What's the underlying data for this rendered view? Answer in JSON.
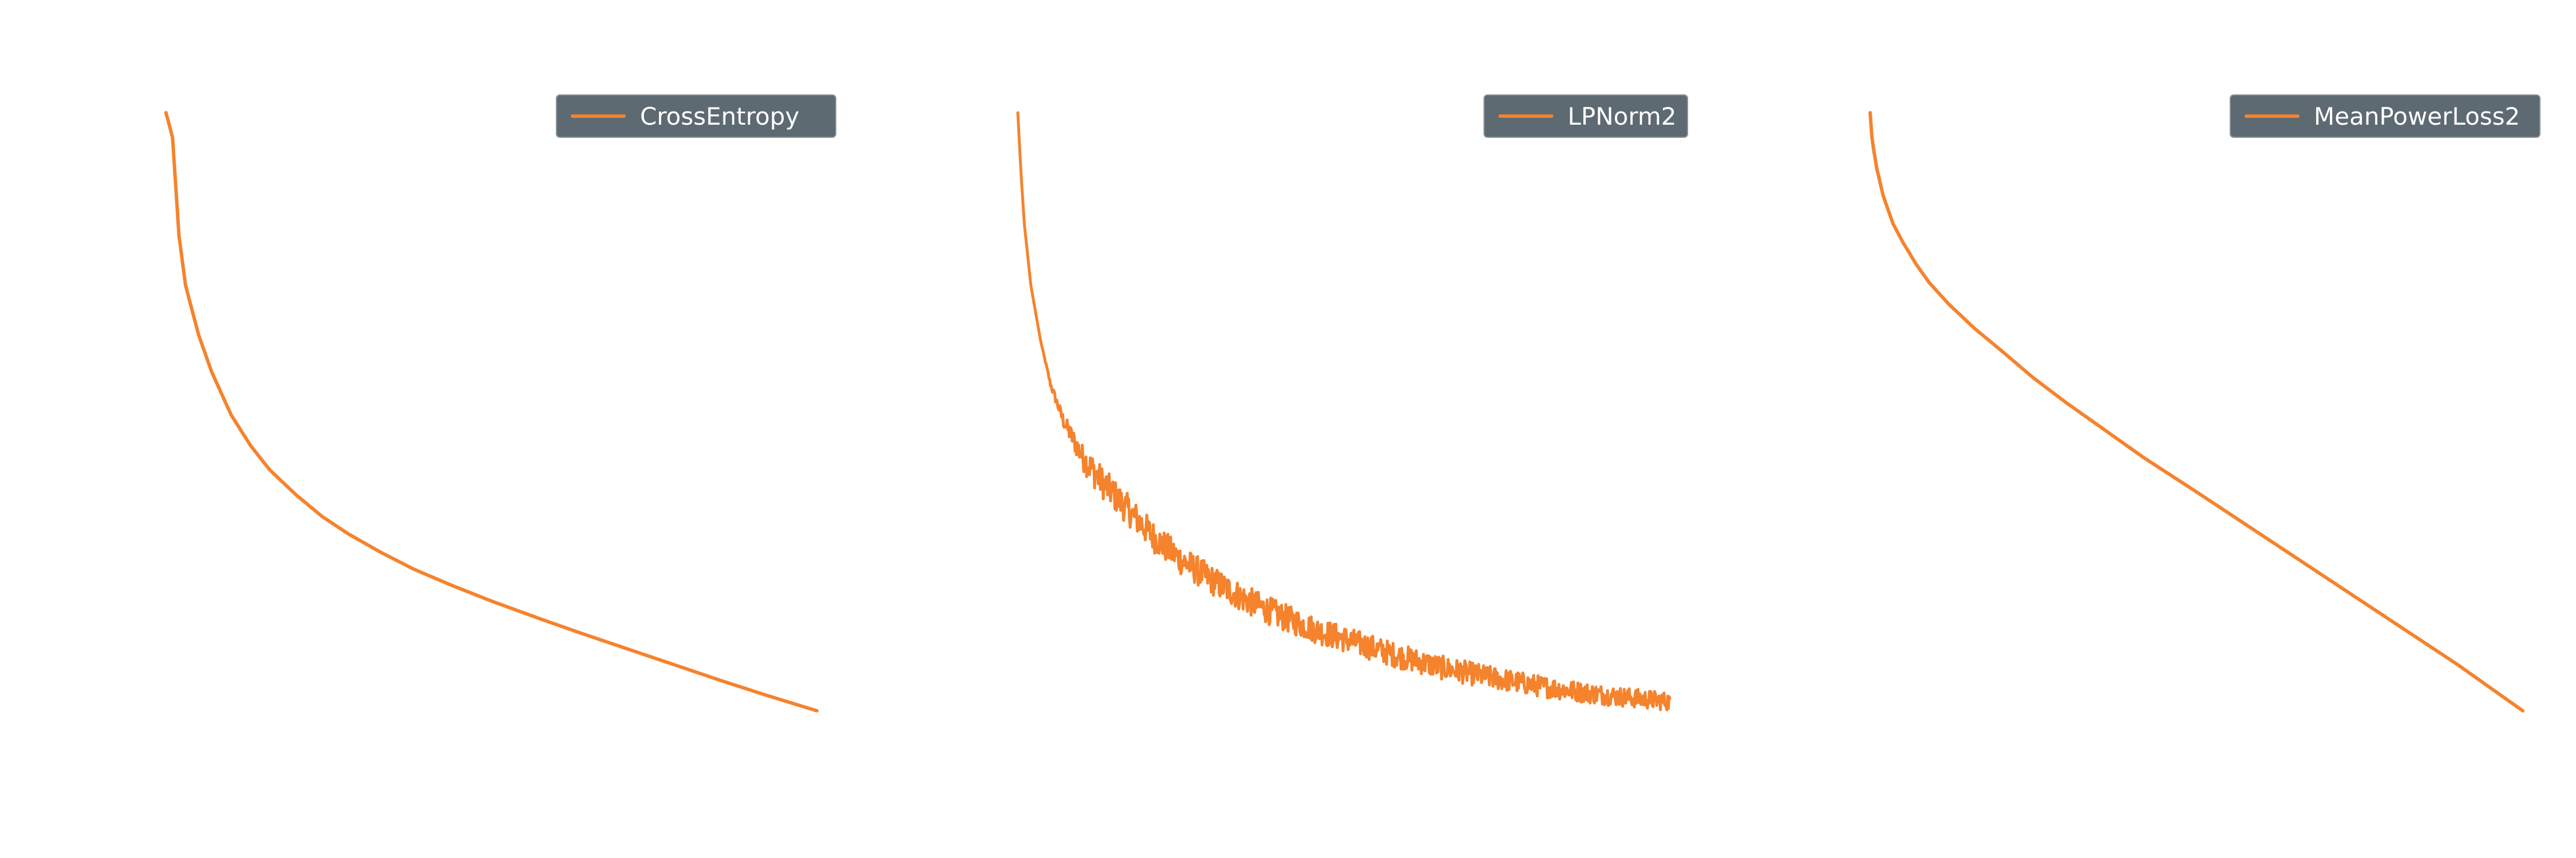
{
  "figure": {
    "background": "#ffffff"
  },
  "style": {
    "line_color": "#f5832d",
    "legend_bg": "#5d6a72",
    "legend_border": "#8a949b",
    "legend_text_color": "#ffffff"
  },
  "chart_data": [
    {
      "type": "line",
      "title": "",
      "xlabel": "",
      "ylabel": "",
      "grid": false,
      "axes_visible": false,
      "legend_placement": "top-right",
      "xlim": [
        0,
        1
      ],
      "ylim": [
        0,
        1
      ],
      "series": [
        {
          "name": "CrossEntropy",
          "x": [
            0.0,
            0.01,
            0.02,
            0.03,
            0.05,
            0.07,
            0.1,
            0.13,
            0.16,
            0.2,
            0.24,
            0.28,
            0.33,
            0.38,
            0.44,
            0.5,
            0.57,
            0.64,
            0.71,
            0.78,
            0.85,
            0.92,
            1.0
          ],
          "y": [
            1.0,
            0.96,
            0.8,
            0.72,
            0.64,
            0.58,
            0.51,
            0.46,
            0.42,
            0.38,
            0.345,
            0.317,
            0.287,
            0.26,
            0.233,
            0.208,
            0.181,
            0.155,
            0.13,
            0.105,
            0.08,
            0.056,
            0.03
          ]
        }
      ]
    },
    {
      "type": "line",
      "title": "",
      "xlabel": "",
      "ylabel": "",
      "grid": false,
      "axes_visible": false,
      "legend_placement": "top-right",
      "xlim": [
        0,
        1
      ],
      "ylim": [
        0,
        1
      ],
      "noise": true,
      "series": [
        {
          "name": "LPNorm2",
          "x": [
            0.0,
            0.005,
            0.01,
            0.02,
            0.035,
            0.05,
            0.07,
            0.1,
            0.13,
            0.17,
            0.21,
            0.25,
            0.3,
            0.35,
            0.4,
            0.46,
            0.52,
            0.58,
            0.65,
            0.72,
            0.8,
            0.88,
            0.95,
            1.0
          ],
          "y": [
            1.0,
            0.9,
            0.82,
            0.72,
            0.63,
            0.56,
            0.5,
            0.44,
            0.4,
            0.355,
            0.31,
            0.275,
            0.24,
            0.21,
            0.185,
            0.16,
            0.14,
            0.12,
            0.1,
            0.085,
            0.07,
            0.058,
            0.05,
            0.045
          ]
        }
      ]
    },
    {
      "type": "line",
      "title": "",
      "xlabel": "",
      "ylabel": "",
      "grid": false,
      "axes_visible": false,
      "legend_placement": "top-right",
      "xlim": [
        0,
        1
      ],
      "ylim": [
        0,
        1
      ],
      "series": [
        {
          "name": "MeanPowerLoss2",
          "x": [
            0.0,
            0.003,
            0.01,
            0.02,
            0.035,
            0.05,
            0.07,
            0.09,
            0.12,
            0.16,
            0.2,
            0.25,
            0.3,
            0.36,
            0.42,
            0.5,
            0.6,
            0.7,
            0.8,
            0.9,
            1.0
          ],
          "y": [
            1.0,
            0.955,
            0.91,
            0.865,
            0.82,
            0.79,
            0.755,
            0.725,
            0.69,
            0.65,
            0.615,
            0.57,
            0.53,
            0.485,
            0.44,
            0.385,
            0.315,
            0.245,
            0.175,
            0.105,
            0.03
          ]
        }
      ]
    }
  ]
}
